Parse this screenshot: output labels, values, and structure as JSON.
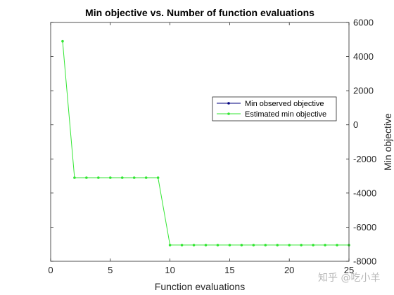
{
  "chart_data": {
    "type": "line",
    "title": "Min objective vs. Number of function evaluations",
    "xlabel": "Function evaluations",
    "ylabel": "Min objective",
    "xlim": [
      0,
      25
    ],
    "ylim": [
      -8000,
      6000
    ],
    "x_ticks": [
      0,
      5,
      10,
      15,
      20,
      25
    ],
    "y_ticks": [
      -8000,
      -6000,
      -4000,
      -2000,
      0,
      2000,
      4000,
      6000
    ],
    "y_axis_side": "right",
    "grid": false,
    "legend_placement": "center-right",
    "series": [
      {
        "name": "Min observed objective",
        "color": "#00007f",
        "x": [],
        "y": []
      },
      {
        "name": "Estimated min objective",
        "color": "#33e633",
        "x": [
          1,
          2,
          3,
          4,
          5,
          6,
          7,
          8,
          9,
          10,
          11,
          12,
          13,
          14,
          15,
          16,
          17,
          18,
          19,
          20,
          21,
          22,
          23,
          24,
          25
        ],
        "y": [
          4900,
          -3100,
          -3100,
          -3100,
          -3100,
          -3100,
          -3100,
          -3100,
          -3100,
          -7050,
          -7050,
          -7050,
          -7050,
          -7050,
          -7050,
          -7050,
          -7050,
          -7050,
          -7050,
          -7050,
          -7050,
          -7050,
          -7050,
          -7050,
          -7050
        ]
      }
    ]
  },
  "watermark": {
    "text": "知乎 @吃小羊"
  }
}
